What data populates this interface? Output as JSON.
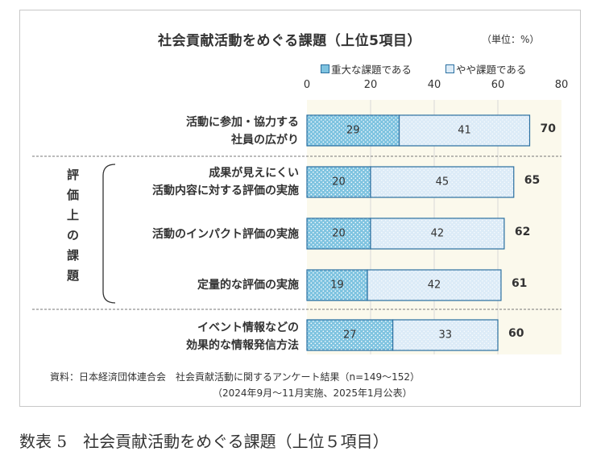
{
  "chart_data": {
    "type": "bar",
    "stacked": true,
    "orientation": "horizontal",
    "title": "社会貢献活動をめぐる課題（上位5項目）",
    "unit_label": "（単位：%）",
    "categories": [
      [
        "活動に参加・協力する",
        "社員の広がり"
      ],
      [
        "成果が見えにくい",
        "活動内容に対する評価の実施"
      ],
      [
        "活動のインパクト評価の実施"
      ],
      [
        "定量的な評価の実施"
      ],
      [
        "イベント情報などの",
        "効果的な情報発信方法"
      ]
    ],
    "series": [
      {
        "name": "重大な課題である",
        "values": [
          29,
          20,
          20,
          19,
          27
        ]
      },
      {
        "name": "やや課題である",
        "values": [
          41,
          45,
          42,
          42,
          33
        ]
      }
    ],
    "totals": [
      70,
      65,
      62,
      61,
      60
    ],
    "xlim": [
      0,
      80
    ],
    "xticks": [
      "0",
      "20",
      "40",
      "60",
      "80"
    ],
    "legend_position": "top",
    "grid": true,
    "group_label": "評価上の課題",
    "group_chars": [
      "評",
      "価",
      "上",
      "の",
      "課",
      "題"
    ],
    "colors": {
      "major": "#7ec3e0",
      "minor": "#dcebf7",
      "edge": "#2a6fa0"
    }
  },
  "source_note_line1": "資料：日本経済団体連合会　社会貢献活動に関するアンケート結果（n=149～152）",
  "source_note_line2": "（2024年9月～11月実施、2025年1月公表）",
  "caption": "数表 5　社会貢献活動をめぐる課題（上位５項目）"
}
